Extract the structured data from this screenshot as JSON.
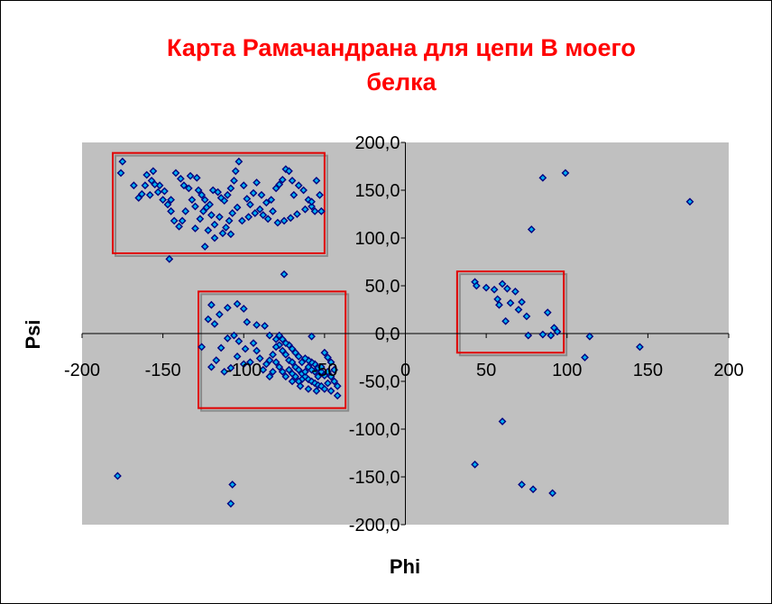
{
  "chart_data": {
    "type": "scatter",
    "title_lines": [
      "Карта Рамачандрана для цепи В моего",
      "белка"
    ],
    "xlabel": "Phi",
    "ylabel": "Psi",
    "xlim": [
      -200,
      200
    ],
    "ylim": [
      -200,
      200
    ],
    "x_ticks": [
      -200,
      -150,
      -100,
      -50,
      0,
      50,
      100,
      150,
      200
    ],
    "y_ticks": [
      200,
      150,
      100,
      50,
      0,
      -50,
      -100,
      -150,
      -200
    ],
    "x_tick_labels": [
      "-200",
      "-150",
      "-100",
      "-50",
      "0",
      "50",
      "100",
      "150",
      "200"
    ],
    "y_tick_labels": [
      "200,0",
      "150,0",
      "100,0",
      "50,0",
      "0,0",
      "-50,0",
      "-100,0",
      "-150,0",
      "-200,0"
    ],
    "plot_background": "#c0c0c0",
    "marker_color": "#00b0f0",
    "marker_edge_color": "#000080",
    "highlight_color": "#e00000",
    "highlight_regions": [
      {
        "name": "beta-sheet",
        "x": [
          -181,
          -50
        ],
        "y": [
          84,
          189
        ]
      },
      {
        "name": "alpha-helix",
        "x": [
          -128,
          -37
        ],
        "y": [
          -78,
          44
        ]
      },
      {
        "name": "left-handed-helix",
        "x": [
          32,
          98
        ],
        "y": [
          -20,
          65
        ]
      }
    ],
    "points": [
      [
        -175,
        180
      ],
      [
        -176,
        168
      ],
      [
        -168,
        155
      ],
      [
        -163,
        146
      ],
      [
        -160,
        166
      ],
      [
        -156,
        170
      ],
      [
        -157,
        160
      ],
      [
        -152,
        155
      ],
      [
        -149,
        149
      ],
      [
        -145,
        140
      ],
      [
        -142,
        168
      ],
      [
        -139,
        162
      ],
      [
        -137,
        155
      ],
      [
        -133,
        165
      ],
      [
        -129,
        163
      ],
      [
        -128,
        150
      ],
      [
        -126,
        145
      ],
      [
        -124,
        140
      ],
      [
        -121,
        135
      ],
      [
        -119,
        150
      ],
      [
        -116,
        148
      ],
      [
        -114,
        142
      ],
      [
        -112,
        139
      ],
      [
        -110,
        145
      ],
      [
        -108,
        152
      ],
      [
        -106,
        160
      ],
      [
        -105,
        170
      ],
      [
        -103,
        180
      ],
      [
        -100,
        155
      ],
      [
        -98,
        141
      ],
      [
        -96,
        135
      ],
      [
        -94,
        147
      ],
      [
        -92,
        158
      ],
      [
        -90,
        130
      ],
      [
        -88,
        124
      ],
      [
        -85,
        120
      ],
      [
        -83,
        140
      ],
      [
        -80,
        152
      ],
      [
        -78,
        156
      ],
      [
        -76,
        161
      ],
      [
        -74,
        172
      ],
      [
        -72,
        170
      ],
      [
        -70,
        160
      ],
      [
        -69,
        145
      ],
      [
        -66,
        155
      ],
      [
        -63,
        150
      ],
      [
        -60,
        140
      ],
      [
        -58,
        133
      ],
      [
        -56,
        128
      ],
      [
        -55,
        160
      ],
      [
        -52,
        128
      ],
      [
        -53,
        145
      ],
      [
        -58,
        138
      ],
      [
        -62,
        130
      ],
      [
        -67,
        125
      ],
      [
        -71,
        121
      ],
      [
        -75,
        118
      ],
      [
        -79,
        116
      ],
      [
        -82,
        128
      ],
      [
        -86,
        137
      ],
      [
        -89,
        145
      ],
      [
        -93,
        126
      ],
      [
        -97,
        122
      ],
      [
        -101,
        118
      ],
      [
        -104,
        132
      ],
      [
        -107,
        126
      ],
      [
        -109,
        118
      ],
      [
        -111,
        111
      ],
      [
        -113,
        105
      ],
      [
        -115,
        122
      ],
      [
        -118,
        114
      ],
      [
        -120,
        124
      ],
      [
        -123,
        132
      ],
      [
        -125,
        128
      ],
      [
        -127,
        120
      ],
      [
        -130,
        133
      ],
      [
        -132,
        140
      ],
      [
        -134,
        152
      ],
      [
        -136,
        128
      ],
      [
        -138,
        118
      ],
      [
        -140,
        112
      ],
      [
        -143,
        118
      ],
      [
        -145,
        128
      ],
      [
        -147,
        135
      ],
      [
        -150,
        140
      ],
      [
        -153,
        148
      ],
      [
        -155,
        156
      ],
      [
        -158,
        145
      ],
      [
        -161,
        155
      ],
      [
        -165,
        142
      ],
      [
        -122,
        108
      ],
      [
        -118,
        100
      ],
      [
        -108,
        104
      ],
      [
        -124,
        91
      ],
      [
        -130,
        110
      ],
      [
        -146,
        78
      ],
      [
        -75,
        62
      ],
      [
        -122,
        15
      ],
      [
        -118,
        10
      ],
      [
        -120,
        30
      ],
      [
        -115,
        20
      ],
      [
        -110,
        27
      ],
      [
        -104,
        31
      ],
      [
        -100,
        26
      ],
      [
        -98,
        12
      ],
      [
        -92,
        9
      ],
      [
        -87,
        8
      ],
      [
        -84,
        -2
      ],
      [
        -80,
        -6
      ],
      [
        -78,
        -12
      ],
      [
        -76,
        -18
      ],
      [
        -74,
        -22
      ],
      [
        -72,
        -28
      ],
      [
        -70,
        -30
      ],
      [
        -68,
        -35
      ],
      [
        -66,
        -38
      ],
      [
        -64,
        -42
      ],
      [
        -62,
        -45
      ],
      [
        -60,
        -48
      ],
      [
        -58,
        -50
      ],
      [
        -56,
        -52
      ],
      [
        -54,
        -54
      ],
      [
        -52,
        -55
      ],
      [
        -50,
        -58
      ],
      [
        -48,
        -52
      ],
      [
        -46,
        -60
      ],
      [
        -50,
        -44
      ],
      [
        -52,
        -40
      ],
      [
        -54,
        -36
      ],
      [
        -56,
        -32
      ],
      [
        -58,
        -30
      ],
      [
        -60,
        -28
      ],
      [
        -62,
        -26
      ],
      [
        -64,
        -30
      ],
      [
        -66,
        -24
      ],
      [
        -68,
        -20
      ],
      [
        -70,
        -16
      ],
      [
        -72,
        -12
      ],
      [
        -74,
        -10
      ],
      [
        -76,
        -6
      ],
      [
        -78,
        -2
      ],
      [
        -80,
        -14
      ],
      [
        -82,
        -22
      ],
      [
        -84,
        -28
      ],
      [
        -86,
        -32
      ],
      [
        -88,
        -38
      ],
      [
        -90,
        -26
      ],
      [
        -92,
        -18
      ],
      [
        -94,
        -10
      ],
      [
        -96,
        -30
      ],
      [
        -99,
        -16
      ],
      [
        -103,
        -8
      ],
      [
        -106,
        -2
      ],
      [
        -110,
        -5
      ],
      [
        -114,
        -15
      ],
      [
        -117,
        -28
      ],
      [
        -120,
        -35
      ],
      [
        -126,
        -14
      ],
      [
        -48,
        -40
      ],
      [
        -46,
        -45
      ],
      [
        -44,
        -50
      ],
      [
        -42,
        -55
      ],
      [
        -44,
        -38
      ],
      [
        -46,
        -30
      ],
      [
        -48,
        -25
      ],
      [
        -50,
        -20
      ],
      [
        -52,
        -35
      ],
      [
        -54,
        -45
      ],
      [
        -56,
        -40
      ],
      [
        -58,
        -38
      ],
      [
        -60,
        -35
      ],
      [
        -62,
        -40
      ],
      [
        -64,
        -48
      ],
      [
        -66,
        -50
      ],
      [
        -68,
        -45
      ],
      [
        -70,
        -42
      ],
      [
        -72,
        -38
      ],
      [
        -74,
        -45
      ],
      [
        -76,
        -40
      ],
      [
        -78,
        -35
      ],
      [
        -80,
        -30
      ],
      [
        -82,
        -40
      ],
      [
        -84,
        -45
      ],
      [
        -55,
        -60
      ],
      [
        -60,
        -58
      ],
      [
        -65,
        -55
      ],
      [
        -70,
        -50
      ],
      [
        -100,
        -32
      ],
      [
        -104,
        -24
      ],
      [
        -108,
        -36
      ],
      [
        -112,
        -40
      ],
      [
        -58,
        -3
      ],
      [
        -42,
        -65
      ],
      [
        43,
        54
      ],
      [
        44,
        50
      ],
      [
        50,
        48
      ],
      [
        55,
        46
      ],
      [
        57,
        36
      ],
      [
        58,
        30
      ],
      [
        60,
        52
      ],
      [
        63,
        47
      ],
      [
        65,
        32
      ],
      [
        68,
        44
      ],
      [
        70,
        25
      ],
      [
        72,
        33
      ],
      [
        75,
        18
      ],
      [
        76,
        -2
      ],
      [
        62,
        13
      ],
      [
        88,
        22
      ],
      [
        90,
        -2
      ],
      [
        92,
        6
      ],
      [
        94,
        2
      ],
      [
        85,
        -1
      ],
      [
        85,
        163
      ],
      [
        99,
        168
      ],
      [
        78,
        109
      ],
      [
        176,
        138
      ],
      [
        114,
        -3
      ],
      [
        111,
        -25
      ],
      [
        145,
        -14
      ],
      [
        60,
        -92
      ],
      [
        43,
        -137
      ],
      [
        72,
        -158
      ],
      [
        79,
        -163
      ],
      [
        91,
        -167
      ],
      [
        -178,
        -149
      ],
      [
        -107,
        -158
      ],
      [
        -108,
        -178
      ]
    ]
  }
}
